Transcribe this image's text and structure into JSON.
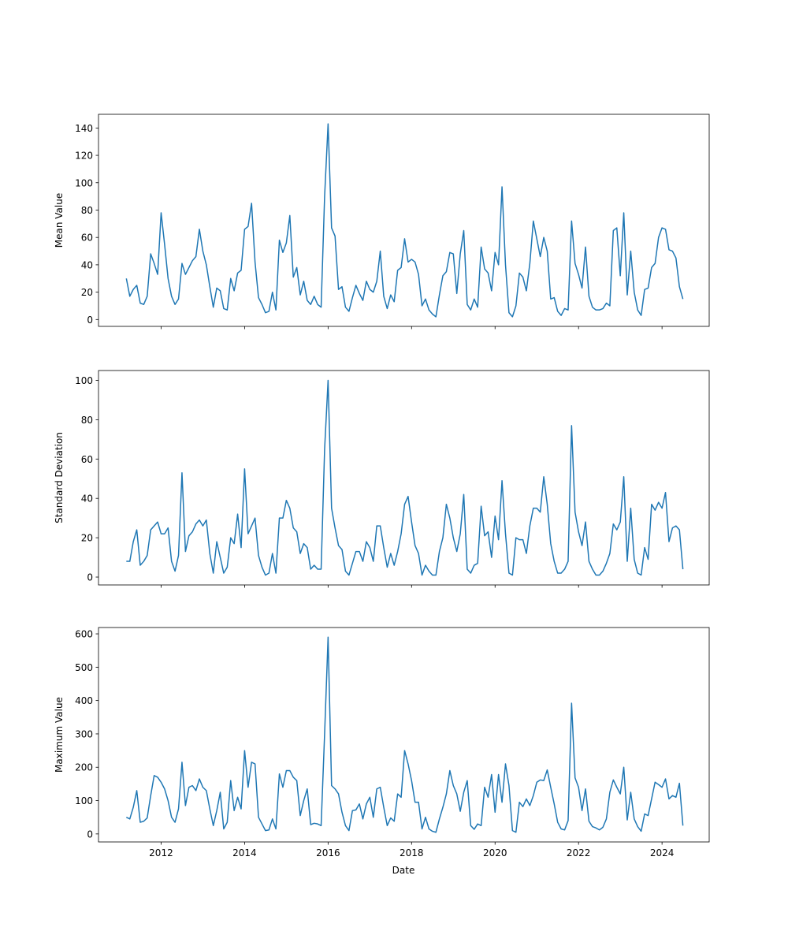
{
  "chart_data": {
    "type": "line",
    "xlabel": "Date",
    "x": [
      "2011-03",
      "2011-04",
      "2011-05",
      "2011-06",
      "2011-07",
      "2011-08",
      "2011-09",
      "2011-10",
      "2011-11",
      "2011-12",
      "2012-01",
      "2012-02",
      "2012-03",
      "2012-04",
      "2012-05",
      "2012-06",
      "2012-07",
      "2012-08",
      "2012-09",
      "2012-10",
      "2012-11",
      "2012-12",
      "2013-01",
      "2013-02",
      "2013-03",
      "2013-04",
      "2013-05",
      "2013-06",
      "2013-07",
      "2013-08",
      "2013-09",
      "2013-10",
      "2013-11",
      "2013-12",
      "2014-01",
      "2014-02",
      "2014-03",
      "2014-04",
      "2014-05",
      "2014-06",
      "2014-07",
      "2014-08",
      "2014-09",
      "2014-10",
      "2014-11",
      "2014-12",
      "2015-01",
      "2015-02",
      "2015-03",
      "2015-04",
      "2015-05",
      "2015-06",
      "2015-07",
      "2015-08",
      "2015-09",
      "2015-10",
      "2015-11",
      "2015-12",
      "2016-01",
      "2016-02",
      "2016-03",
      "2016-04",
      "2016-05",
      "2016-06",
      "2016-07",
      "2016-08",
      "2016-09",
      "2016-10",
      "2016-11",
      "2016-12",
      "2017-01",
      "2017-02",
      "2017-03",
      "2017-04",
      "2017-05",
      "2017-06",
      "2017-07",
      "2017-08",
      "2017-09",
      "2017-10",
      "2017-11",
      "2017-12",
      "2018-01",
      "2018-02",
      "2018-03",
      "2018-04",
      "2018-05",
      "2018-06",
      "2018-07",
      "2018-08",
      "2018-09",
      "2018-10",
      "2018-11",
      "2018-12",
      "2019-01",
      "2019-02",
      "2019-03",
      "2019-04",
      "2019-05",
      "2019-06",
      "2019-07",
      "2019-08",
      "2019-09",
      "2019-10",
      "2019-11",
      "2019-12",
      "2020-01",
      "2020-02",
      "2020-03",
      "2020-04",
      "2020-05",
      "2020-06",
      "2020-07",
      "2020-08",
      "2020-09",
      "2020-10",
      "2020-11",
      "2020-12",
      "2021-01",
      "2021-02",
      "2021-03",
      "2021-04",
      "2021-05",
      "2021-06",
      "2021-07",
      "2021-08",
      "2021-09",
      "2021-10",
      "2021-11",
      "2021-12",
      "2022-01",
      "2022-02",
      "2022-03",
      "2022-04",
      "2022-05",
      "2022-06",
      "2022-07",
      "2022-08",
      "2022-09",
      "2022-10",
      "2022-11",
      "2022-12",
      "2023-01",
      "2023-02",
      "2023-03",
      "2023-04",
      "2023-05",
      "2023-06",
      "2023-07",
      "2023-08",
      "2023-09",
      "2023-10",
      "2023-11",
      "2023-12",
      "2024-01",
      "2024-02",
      "2024-03",
      "2024-04",
      "2024-05",
      "2024-06",
      "2024-07"
    ],
    "xlim": [
      2010.5,
      2025.13
    ],
    "xticks": [
      2012,
      2014,
      2016,
      2018,
      2020,
      2022,
      2024
    ],
    "panels": [
      {
        "ylabel": "Mean Value",
        "ylim": [
          -5,
          150
        ],
        "yticks": [
          0,
          20,
          40,
          60,
          80,
          100,
          120,
          140
        ],
        "series": [
          {
            "color": "#1f77b4",
            "values": [
              30,
              17,
              22,
              25,
              12,
              11,
              17,
              48,
              41,
              33,
              78,
              55,
              30,
              17,
              11,
              15,
              41,
              33,
              38,
              43,
              46,
              66,
              50,
              40,
              24,
              9,
              23,
              21,
              8,
              7,
              30,
              21,
              34,
              36,
              66,
              68,
              85,
              42,
              16,
              11,
              5,
              6,
              20,
              7,
              58,
              49,
              56,
              76,
              31,
              38,
              18,
              28,
              14,
              11,
              17,
              11,
              9,
              90,
              143,
              67,
              61,
              22,
              24,
              9,
              6,
              16,
              25,
              19,
              14,
              28,
              22,
              20,
              28,
              50,
              17,
              8,
              18,
              13,
              36,
              38,
              59,
              42,
              44,
              42,
              33,
              10,
              15,
              7,
              4,
              2,
              18,
              32,
              35,
              49,
              48,
              19,
              48,
              65,
              11,
              7,
              15,
              9,
              53,
              37,
              34,
              21,
              49,
              40,
              97,
              40,
              5,
              2,
              10,
              34,
              31,
              21,
              41,
              72,
              59,
              46,
              60,
              50,
              15,
              16,
              6,
              3,
              8,
              7,
              72,
              41,
              33,
              23,
              53,
              17,
              9,
              7,
              7,
              8,
              12,
              10,
              65,
              67,
              32,
              78,
              18,
              50,
              20,
              7,
              3,
              22,
              23,
              38,
              41,
              60,
              67,
              66,
              51,
              50,
              45,
              24,
              15
            ]
          }
        ]
      },
      {
        "ylabel": "Standard Deviation",
        "ylim": [
          -4,
          105
        ],
        "yticks": [
          0,
          20,
          40,
          60,
          80,
          100
        ],
        "series": [
          {
            "color": "#1f77b4",
            "values": [
              8,
              8,
              18,
              24,
              6,
              8,
              11,
              24,
              26,
              28,
              22,
              22,
              25,
              8,
              3,
              11,
              53,
              13,
              21,
              23,
              27,
              29,
              26,
              29,
              12,
              2,
              18,
              10,
              2,
              5,
              20,
              17,
              32,
              15,
              55,
              22,
              26,
              30,
              11,
              5,
              1,
              2,
              12,
              2,
              30,
              30,
              39,
              35,
              25,
              23,
              12,
              17,
              15,
              4,
              6,
              4,
              4,
              65,
              100,
              35,
              25,
              16,
              14,
              3,
              1,
              7,
              13,
              13,
              8,
              18,
              15,
              8,
              26,
              26,
              15,
              5,
              12,
              6,
              13,
              22,
              37,
              41,
              28,
              16,
              12,
              1,
              6,
              3,
              1,
              1,
              13,
              20,
              37,
              30,
              20,
              13,
              22,
              42,
              4,
              2,
              6,
              7,
              36,
              21,
              23,
              10,
              31,
              19,
              49,
              22,
              2,
              1,
              20,
              19,
              19,
              12,
              26,
              35,
              35,
              33,
              51,
              37,
              17,
              8,
              2,
              2,
              4,
              8,
              77,
              33,
              23,
              16,
              28,
              8,
              4,
              1,
              1,
              3,
              7,
              12,
              27,
              24,
              28,
              51,
              8,
              35,
              9,
              2,
              1,
              15,
              9,
              37,
              34,
              38,
              35,
              43,
              18,
              25,
              26,
              24,
              4
            ]
          }
        ]
      },
      {
        "ylabel": "Maximum Value",
        "ylim": [
          -24,
          619
        ],
        "yticks": [
          0,
          100,
          200,
          300,
          400,
          500,
          600
        ],
        "series": [
          {
            "color": "#1f77b4",
            "values": [
              50,
              45,
              80,
              130,
              35,
              38,
              48,
              115,
              175,
              170,
              155,
              135,
              100,
              50,
              35,
              75,
              215,
              85,
              140,
              145,
              130,
              165,
              140,
              130,
              75,
              25,
              70,
              125,
              15,
              35,
              160,
              70,
              110,
              75,
              250,
              140,
              215,
              210,
              50,
              30,
              10,
              12,
              45,
              15,
              180,
              140,
              190,
              190,
              170,
              160,
              55,
              100,
              135,
              28,
              32,
              30,
              25,
              300,
              590,
              145,
              135,
              120,
              65,
              25,
              10,
              70,
              72,
              90,
              45,
              90,
              110,
              50,
              135,
              140,
              80,
              25,
              48,
              38,
              120,
              110,
              250,
              210,
              160,
              95,
              95,
              15,
              50,
              15,
              8,
              5,
              45,
              80,
              120,
              190,
              145,
              120,
              68,
              125,
              160,
              25,
              14,
              30,
              25,
              140,
              110,
              178,
              65,
              178,
              95,
              210,
              145,
              10,
              5,
              95,
              82,
              105,
              85,
              115,
              155,
              162,
              160,
              192,
              140,
              90,
              35,
              15,
              12,
              40,
              392,
              168,
              140,
              70,
              135,
              38,
              22,
              18,
              12,
              20,
              45,
              125,
              162,
              140,
              120,
              200,
              42,
              125,
              45,
              22,
              8,
              60,
              55,
              105,
              155,
              148,
              140,
              165,
              105,
              115,
              110,
              152,
              25
            ]
          }
        ]
      }
    ]
  }
}
